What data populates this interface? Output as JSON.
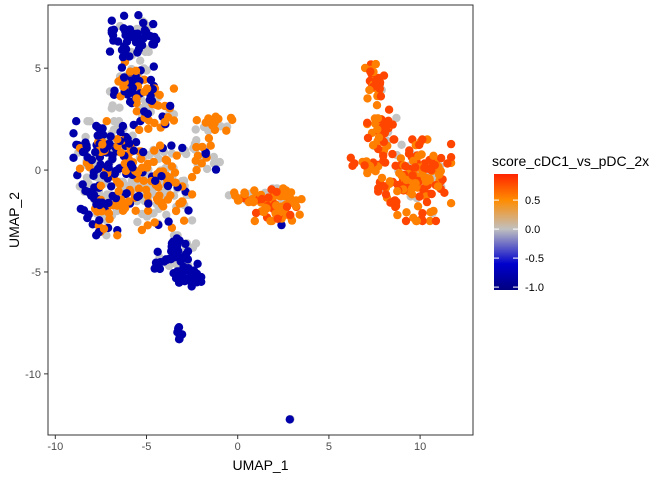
{
  "chart_data": {
    "type": "scatter",
    "title": "",
    "xlabel": "UMAP_1",
    "ylabel": "UMAP_2",
    "xlim": [
      -10.4,
      12.9
    ],
    "ylim": [
      -13.0,
      8.1
    ],
    "x_ticks": [
      -10,
      -5,
      0,
      5,
      10
    ],
    "y_ticks": [
      5,
      0,
      -5,
      -10
    ],
    "grid": false,
    "legend": {
      "title": "score_cDC1_vs_pDC_2x",
      "position": "right",
      "type": "colorbar",
      "ticks": [
        0.5,
        0.0,
        -0.5,
        -1.0
      ],
      "tick_labels": [
        "0.5",
        "0.0",
        "-0.5",
        "-1.0"
      ],
      "range": [
        -1.05,
        0.95
      ],
      "color_stops": [
        {
          "value": -1.05,
          "color": "#000080"
        },
        {
          "value": -0.6,
          "color": "#0000cd"
        },
        {
          "value": 0.0,
          "color": "#c0c0c0"
        },
        {
          "value": 0.5,
          "color": "#ff8c00"
        },
        {
          "value": 0.95,
          "color": "#ff2400"
        }
      ]
    },
    "point_color_groups": [
      {
        "name": "low",
        "color": "#0000aa"
      },
      {
        "name": "neutral",
        "color": "#c4c4c4"
      },
      {
        "name": "mid",
        "color": "#ff7f00"
      },
      {
        "name": "high",
        "color": "#ff4500"
      }
    ],
    "clusters": [
      {
        "cx": -5.6,
        "cy": 6.7,
        "rx": 1.3,
        "ry": 0.9,
        "n": 55,
        "mix": [
          0.6,
          0.4,
          0.0,
          0.0
        ]
      },
      {
        "cx": -5.8,
        "cy": 4.6,
        "rx": 1.2,
        "ry": 1.6,
        "n": 75,
        "mix": [
          0.5,
          0.3,
          0.2,
          0.0
        ]
      },
      {
        "cx": -4.7,
        "cy": 3.0,
        "rx": 1.2,
        "ry": 1.0,
        "n": 40,
        "mix": [
          0.25,
          0.25,
          0.5,
          0.0
        ]
      },
      {
        "cx": -7.8,
        "cy": 0.4,
        "rx": 1.2,
        "ry": 2.0,
        "n": 90,
        "mix": [
          0.5,
          0.4,
          0.1,
          0.0
        ]
      },
      {
        "cx": -7.6,
        "cy": -2.0,
        "rx": 1.0,
        "ry": 1.2,
        "n": 55,
        "mix": [
          0.4,
          0.4,
          0.2,
          0.0
        ]
      },
      {
        "cx": -6.2,
        "cy": 0.2,
        "rx": 1.3,
        "ry": 2.2,
        "n": 120,
        "mix": [
          0.3,
          0.35,
          0.35,
          0.0
        ]
      },
      {
        "cx": -4.0,
        "cy": -1.0,
        "rx": 1.5,
        "ry": 2.2,
        "n": 120,
        "mix": [
          0.15,
          0.45,
          0.4,
          0.0
        ]
      },
      {
        "cx": -3.4,
        "cy": -4.3,
        "rx": 1.2,
        "ry": 1.0,
        "n": 55,
        "mix": [
          0.7,
          0.3,
          0.0,
          0.0
        ]
      },
      {
        "cx": -2.7,
        "cy": -5.3,
        "rx": 0.7,
        "ry": 0.5,
        "n": 22,
        "mix": [
          1.0,
          0.0,
          0.0,
          0.0
        ]
      },
      {
        "cx": -1.3,
        "cy": 2.3,
        "rx": 1.0,
        "ry": 0.5,
        "n": 25,
        "mix": [
          0.0,
          0.4,
          0.6,
          0.0
        ]
      },
      {
        "cx": -1.8,
        "cy": 0.8,
        "rx": 1.2,
        "ry": 0.8,
        "n": 30,
        "mix": [
          0.05,
          0.45,
          0.5,
          0.0
        ]
      },
      {
        "cx": -3.2,
        "cy": -8.0,
        "rx": 0.15,
        "ry": 0.3,
        "n": 8,
        "mix": [
          1.0,
          0.0,
          0.0,
          0.0
        ]
      },
      {
        "cx": 0.5,
        "cy": -1.3,
        "rx": 1.0,
        "ry": 0.35,
        "n": 25,
        "mix": [
          0.0,
          0.2,
          0.7,
          0.1
        ]
      },
      {
        "cx": 2.2,
        "cy": -1.7,
        "rx": 1.3,
        "ry": 0.8,
        "n": 70,
        "mix": [
          0.0,
          0.15,
          0.55,
          0.3
        ]
      },
      {
        "cx": 2.9,
        "cy": -12.2,
        "rx": 0.05,
        "ry": 0.05,
        "n": 2,
        "mix": [
          0.5,
          0.5,
          0.0,
          0.0
        ]
      },
      {
        "cx": 7.5,
        "cy": 4.3,
        "rx": 0.6,
        "ry": 0.9,
        "n": 30,
        "mix": [
          0.0,
          0.05,
          0.45,
          0.5
        ]
      },
      {
        "cx": 7.9,
        "cy": 2.0,
        "rx": 0.8,
        "ry": 1.3,
        "n": 40,
        "mix": [
          0.0,
          0.1,
          0.4,
          0.5
        ]
      },
      {
        "cx": 9.7,
        "cy": -0.5,
        "rx": 2.0,
        "ry": 2.0,
        "n": 170,
        "mix": [
          0.0,
          0.12,
          0.4,
          0.48
        ]
      },
      {
        "cx": 7.0,
        "cy": 0.2,
        "rx": 0.8,
        "ry": 0.4,
        "n": 15,
        "mix": [
          0.0,
          0.0,
          0.5,
          0.5
        ]
      }
    ],
    "extra_points": [
      {
        "x": 2.4,
        "y": -2.7,
        "group": "low"
      },
      {
        "x": -2.2,
        "y": -4.6,
        "group": "low"
      },
      {
        "x": -4.7,
        "y": 3.4,
        "group": "low"
      },
      {
        "x": 6.2,
        "y": 0.6,
        "group": "high"
      }
    ]
  }
}
